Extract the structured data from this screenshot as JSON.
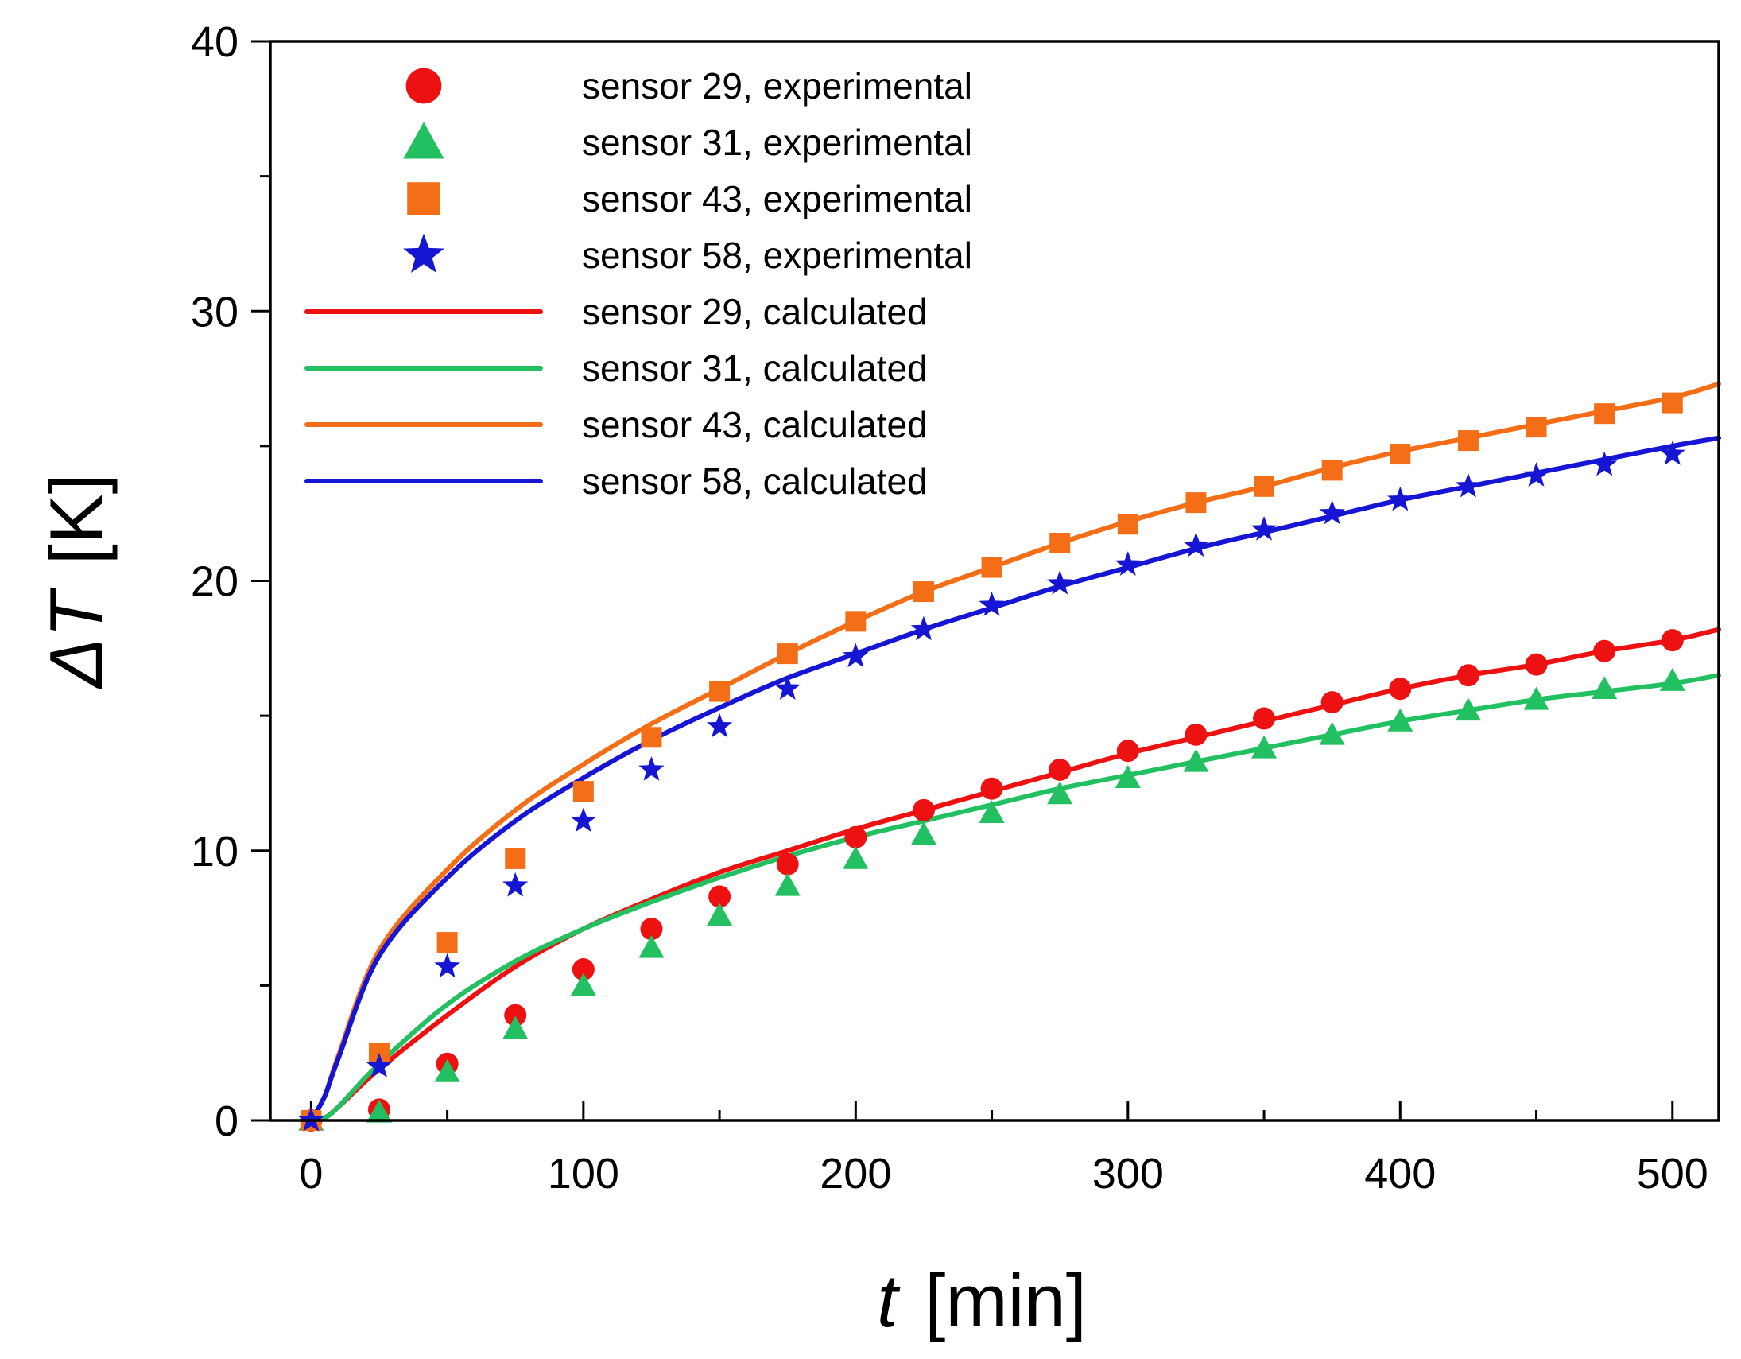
{
  "chart_data": {
    "type": "scatter",
    "xlabel": {
      "symbol": "t",
      "unit": "[min]"
    },
    "ylabel": {
      "symbol": "ΔT",
      "unit": "[K]"
    },
    "xlim": [
      -15,
      517
    ],
    "ylim": [
      0,
      40
    ],
    "x_ticks": [
      "0",
      "100",
      "200",
      "300",
      "400",
      "500"
    ],
    "y_ticks": [
      "0",
      "10",
      "20",
      "30",
      "40"
    ],
    "grid": false,
    "legend_position": "top-left",
    "x": [
      0,
      25,
      50,
      75,
      100,
      125,
      150,
      175,
      200,
      225,
      250,
      275,
      300,
      325,
      350,
      375,
      400,
      425,
      450,
      475,
      500
    ],
    "experimental": [
      {
        "name": "sensor 29, experimental",
        "marker": "circle",
        "color": "#ee1111",
        "values": [
          0,
          0.4,
          2.1,
          3.9,
          5.6,
          7.1,
          8.3,
          9.5,
          10.5,
          11.5,
          12.3,
          13.0,
          13.7,
          14.3,
          14.9,
          15.5,
          16.0,
          16.5,
          16.9,
          17.4,
          17.8
        ]
      },
      {
        "name": "sensor 31, experimental",
        "marker": "triangle",
        "color": "#22c061",
        "values": [
          0,
          0.3,
          1.8,
          3.4,
          5.0,
          6.4,
          7.6,
          8.7,
          9.7,
          10.6,
          11.4,
          12.1,
          12.7,
          13.3,
          13.8,
          14.3,
          14.8,
          15.2,
          15.6,
          16.0,
          16.3
        ]
      },
      {
        "name": "sensor 43, experimental",
        "marker": "square",
        "color": "#f36e17",
        "values": [
          0,
          2.5,
          6.6,
          9.7,
          12.2,
          14.2,
          15.9,
          17.3,
          18.5,
          19.6,
          20.5,
          21.4,
          22.1,
          22.9,
          23.5,
          24.1,
          24.7,
          25.2,
          25.7,
          26.2,
          26.6
        ]
      },
      {
        "name": "sensor 58, experimental",
        "marker": "star",
        "color": "#1515d3",
        "values": [
          0,
          2.0,
          5.7,
          8.7,
          11.1,
          13.0,
          14.6,
          16.0,
          17.2,
          18.2,
          19.1,
          19.9,
          20.6,
          21.3,
          21.9,
          22.5,
          23.0,
          23.5,
          23.9,
          24.3,
          24.7
        ]
      }
    ],
    "calculated": [
      {
        "name": "sensor 29, calculated",
        "color": "#ee1111",
        "x": [
          0,
          5,
          10,
          25,
          50,
          75,
          100,
          125,
          150,
          175,
          200,
          225,
          250,
          275,
          300,
          325,
          350,
          375,
          400,
          425,
          450,
          475,
          500,
          517
        ],
        "values": [
          0,
          0.1,
          0.5,
          1.9,
          3.9,
          5.7,
          7.1,
          8.2,
          9.2,
          10.0,
          10.8,
          11.5,
          12.2,
          12.9,
          13.6,
          14.2,
          14.8,
          15.4,
          16.0,
          16.5,
          16.9,
          17.4,
          17.8,
          18.2
        ]
      },
      {
        "name": "sensor 31, calculated",
        "color": "#22c061",
        "x": [
          0,
          5,
          10,
          25,
          50,
          75,
          100,
          125,
          150,
          175,
          200,
          225,
          250,
          275,
          300,
          325,
          350,
          375,
          400,
          425,
          450,
          475,
          500,
          517
        ],
        "values": [
          0,
          0.1,
          0.5,
          2.1,
          4.3,
          5.9,
          7.1,
          8.1,
          9.0,
          9.8,
          10.5,
          11.1,
          11.7,
          12.3,
          12.8,
          13.3,
          13.8,
          14.3,
          14.8,
          15.2,
          15.6,
          15.9,
          16.2,
          16.5
        ]
      },
      {
        "name": "sensor 43, calculated",
        "color": "#f36e17",
        "x": [
          0,
          5,
          10,
          25,
          50,
          75,
          100,
          125,
          150,
          175,
          200,
          225,
          250,
          275,
          300,
          325,
          350,
          375,
          400,
          425,
          450,
          475,
          500,
          517
        ],
        "values": [
          0,
          0.9,
          2.4,
          6.3,
          9.3,
          11.5,
          13.2,
          14.7,
          16.0,
          17.3,
          18.5,
          19.6,
          20.5,
          21.4,
          22.2,
          22.9,
          23.5,
          24.2,
          24.8,
          25.3,
          25.8,
          26.3,
          26.8,
          27.3
        ]
      },
      {
        "name": "sensor 58, calculated",
        "color": "#1515d3",
        "x": [
          0,
          5,
          10,
          25,
          50,
          75,
          100,
          125,
          150,
          175,
          200,
          225,
          250,
          275,
          300,
          325,
          350,
          375,
          400,
          425,
          450,
          475,
          500,
          517
        ],
        "values": [
          0,
          0.9,
          2.3,
          6.1,
          9.0,
          11.1,
          12.7,
          14.1,
          15.3,
          16.4,
          17.3,
          18.2,
          19.0,
          19.8,
          20.5,
          21.2,
          21.8,
          22.4,
          23.0,
          23.5,
          24.0,
          24.5,
          25.0,
          25.3
        ]
      }
    ]
  }
}
